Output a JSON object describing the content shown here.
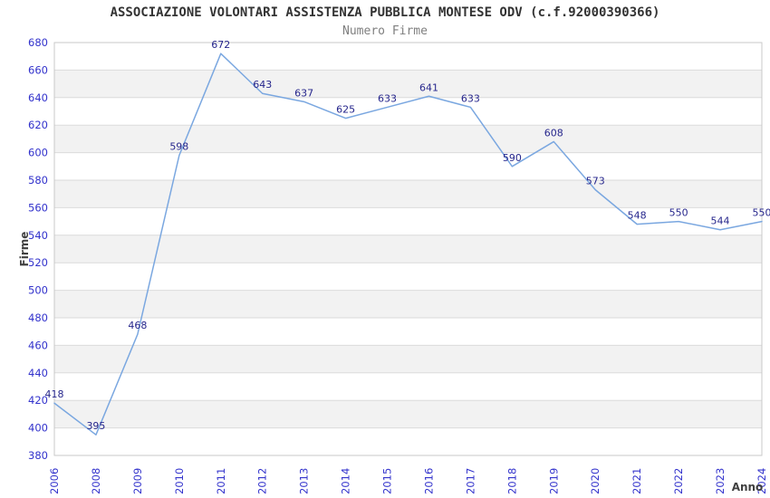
{
  "header": {
    "title": "ASSOCIAZIONE VOLONTARI ASSISTENZA PUBBLICA MONTESE ODV (c.f.92000390366)",
    "subtitle": "Numero Firme"
  },
  "chart_data": {
    "type": "line",
    "title": "ASSOCIAZIONE VOLONTARI ASSISTENZA PUBBLICA MONTESE ODV (c.f.92000390366)",
    "subtitle": "Numero Firme",
    "categories": [
      "2006",
      "2008",
      "2009",
      "2010",
      "2011",
      "2012",
      "2013",
      "2014",
      "2015",
      "2016",
      "2017",
      "2018",
      "2019",
      "2020",
      "2021",
      "2022",
      "2023",
      "2024"
    ],
    "values": [
      418,
      395,
      468,
      598,
      672,
      643,
      637,
      625,
      633,
      641,
      633,
      590,
      608,
      573,
      548,
      550,
      544,
      550
    ],
    "xlabel": "Anno",
    "ylabel": "Firme",
    "ylim": [
      380,
      680
    ],
    "ytick_step": 20,
    "grid": "horizontal-with-alternating-bands",
    "legend": "none",
    "point_labels_shown": true,
    "colors": {
      "line": "#7AA7E0",
      "point_label": "#26268C",
      "tick_label": "#3333CC",
      "title": "#333333",
      "subtitle": "#7F7F7F",
      "axis_title": "#404040",
      "band": "#F2F2F2",
      "gridline": "#DBDBDB",
      "border": "#C8C8C8",
      "background": "#FFFFFF"
    }
  }
}
